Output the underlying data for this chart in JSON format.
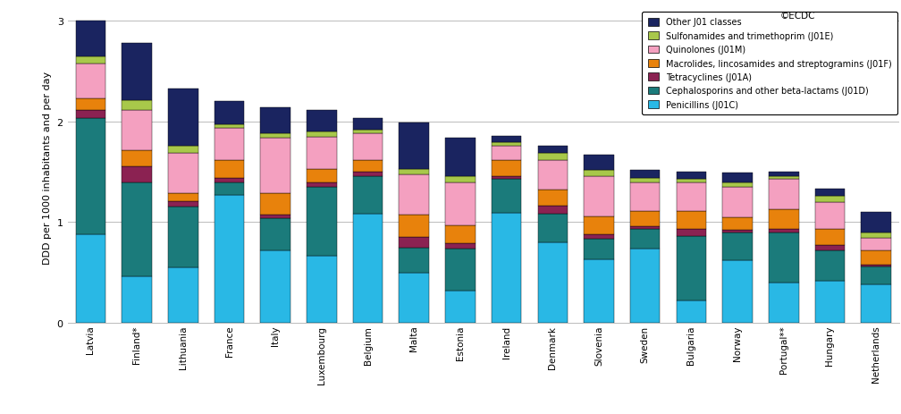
{
  "countries": [
    "Latvia",
    "Finland*",
    "Lithuania",
    "France",
    "Italy",
    "Luxembourg",
    "Belgium",
    "Malta",
    "Estonia",
    "Ireland",
    "Denmark",
    "Slovenia",
    "Sweden",
    "Bulgaria",
    "Norway",
    "Portugal**",
    "Hungary",
    "Netherlands"
  ],
  "series": {
    "Penicillins (J01C)": [
      0.88,
      0.46,
      0.55,
      1.27,
      0.72,
      0.67,
      1.08,
      0.5,
      0.32,
      1.09,
      0.8,
      0.63,
      0.74,
      0.22,
      0.62,
      0.4,
      0.42,
      0.38
    ],
    "Cephalosporins and other beta-lactams (J01D)": [
      1.15,
      0.93,
      0.6,
      0.12,
      0.32,
      0.68,
      0.38,
      0.25,
      0.42,
      0.34,
      0.28,
      0.2,
      0.19,
      0.64,
      0.28,
      0.5,
      0.3,
      0.18
    ],
    "Tetracyclines (J01A)": [
      0.08,
      0.16,
      0.06,
      0.05,
      0.03,
      0.04,
      0.04,
      0.1,
      0.05,
      0.03,
      0.08,
      0.05,
      0.03,
      0.07,
      0.02,
      0.03,
      0.05,
      0.02
    ],
    "Macrolides, lincosamides and streptogramins (J01F)": [
      0.12,
      0.16,
      0.08,
      0.18,
      0.22,
      0.14,
      0.12,
      0.22,
      0.18,
      0.16,
      0.16,
      0.18,
      0.15,
      0.18,
      0.13,
      0.2,
      0.16,
      0.14
    ],
    "Quinolones (J01M)": [
      0.35,
      0.4,
      0.4,
      0.32,
      0.55,
      0.32,
      0.26,
      0.4,
      0.42,
      0.14,
      0.3,
      0.4,
      0.28,
      0.28,
      0.3,
      0.3,
      0.27,
      0.12
    ],
    "Sulfonamides and trimethoprim (J01E)": [
      0.07,
      0.1,
      0.07,
      0.03,
      0.04,
      0.05,
      0.04,
      0.06,
      0.07,
      0.03,
      0.07,
      0.06,
      0.05,
      0.04,
      0.04,
      0.03,
      0.06,
      0.06
    ],
    "Other J01 classes": [
      0.35,
      0.57,
      0.57,
      0.23,
      0.26,
      0.21,
      0.11,
      0.46,
      0.38,
      0.07,
      0.07,
      0.15,
      0.08,
      0.07,
      0.1,
      0.04,
      0.07,
      0.2
    ]
  },
  "colors": {
    "Penicillins (J01C)": "#29B8E5",
    "Cephalosporins and other beta-lactams (J01D)": "#1B7B7B",
    "Tetracyclines (J01A)": "#8B2252",
    "Macrolides, lincosamides and streptogramins (J01F)": "#E8820C",
    "Quinolones (J01M)": "#F4A0C0",
    "Sulfonamides and trimethoprim (J01E)": "#A8C84A",
    "Other J01 classes": "#1A2460"
  },
  "ylabel": "DDD per 1000 inhabitants and per day",
  "ylim": [
    0,
    3.1
  ],
  "yticks": [
    0,
    1,
    2,
    3
  ],
  "copyright": "©ECDC",
  "background_color": "#FFFFFF",
  "grid_color": "#BBBBBB"
}
